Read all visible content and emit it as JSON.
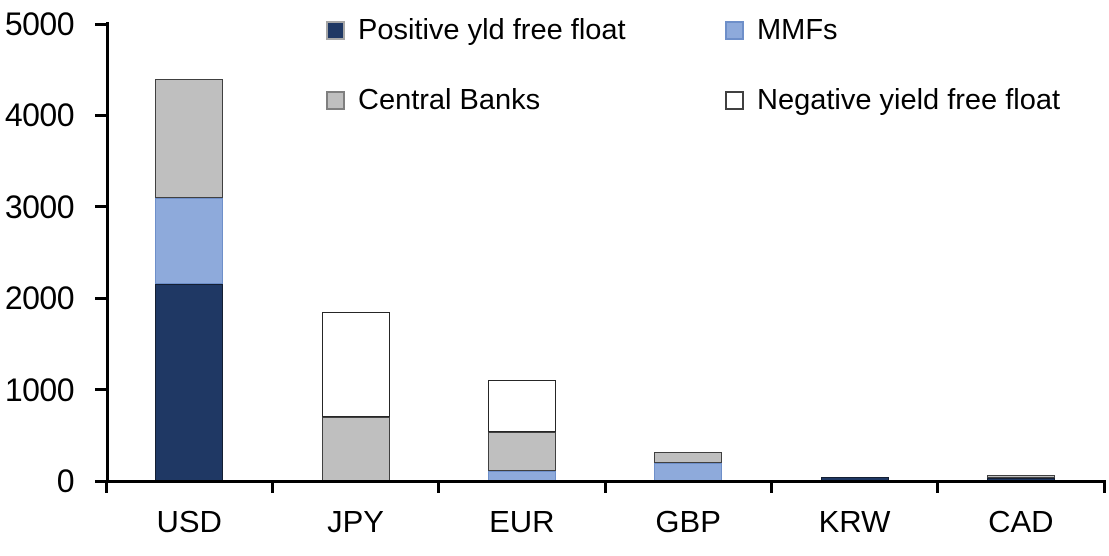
{
  "chart_data": {
    "type": "bar",
    "stacked": true,
    "title": "",
    "xlabel": "",
    "ylabel": "",
    "categories": [
      "USD",
      "JPY",
      "EUR",
      "GBP",
      "KRW",
      "CAD"
    ],
    "series": [
      {
        "name": "Positive yld free float",
        "color": "#1F3864",
        "border_color": "#141F33",
        "swatch_border": "#A6A6A6",
        "values": [
          2150,
          0,
          0,
          0,
          45,
          35
        ]
      },
      {
        "name": "MMFs",
        "color": "#8EAADB",
        "border_color": "#6E8FC9",
        "swatch_border": "#6E8FC9",
        "values": [
          950,
          0,
          110,
          200,
          0,
          0
        ]
      },
      {
        "name": "Central Banks",
        "color": "#BFBFBF",
        "border_color": "#404040",
        "swatch_border": "#7F7F7F",
        "values": [
          1300,
          700,
          430,
          120,
          0,
          30
        ]
      },
      {
        "name": "Negative yield free float",
        "color": "#FFFFFF",
        "border_color": "#262626",
        "swatch_border": "#404040",
        "values": [
          0,
          1150,
          560,
          0,
          0,
          0
        ]
      }
    ],
    "ylim": [
      0,
      5000
    ],
    "yticks": [
      0,
      1000,
      2000,
      3000,
      4000,
      5000
    ],
    "ytick_labels": [
      "0",
      "1000",
      "2000",
      "3000",
      "4000",
      "5000"
    ],
    "grid": false,
    "legend_position": "top",
    "axis_color": "#000000"
  }
}
